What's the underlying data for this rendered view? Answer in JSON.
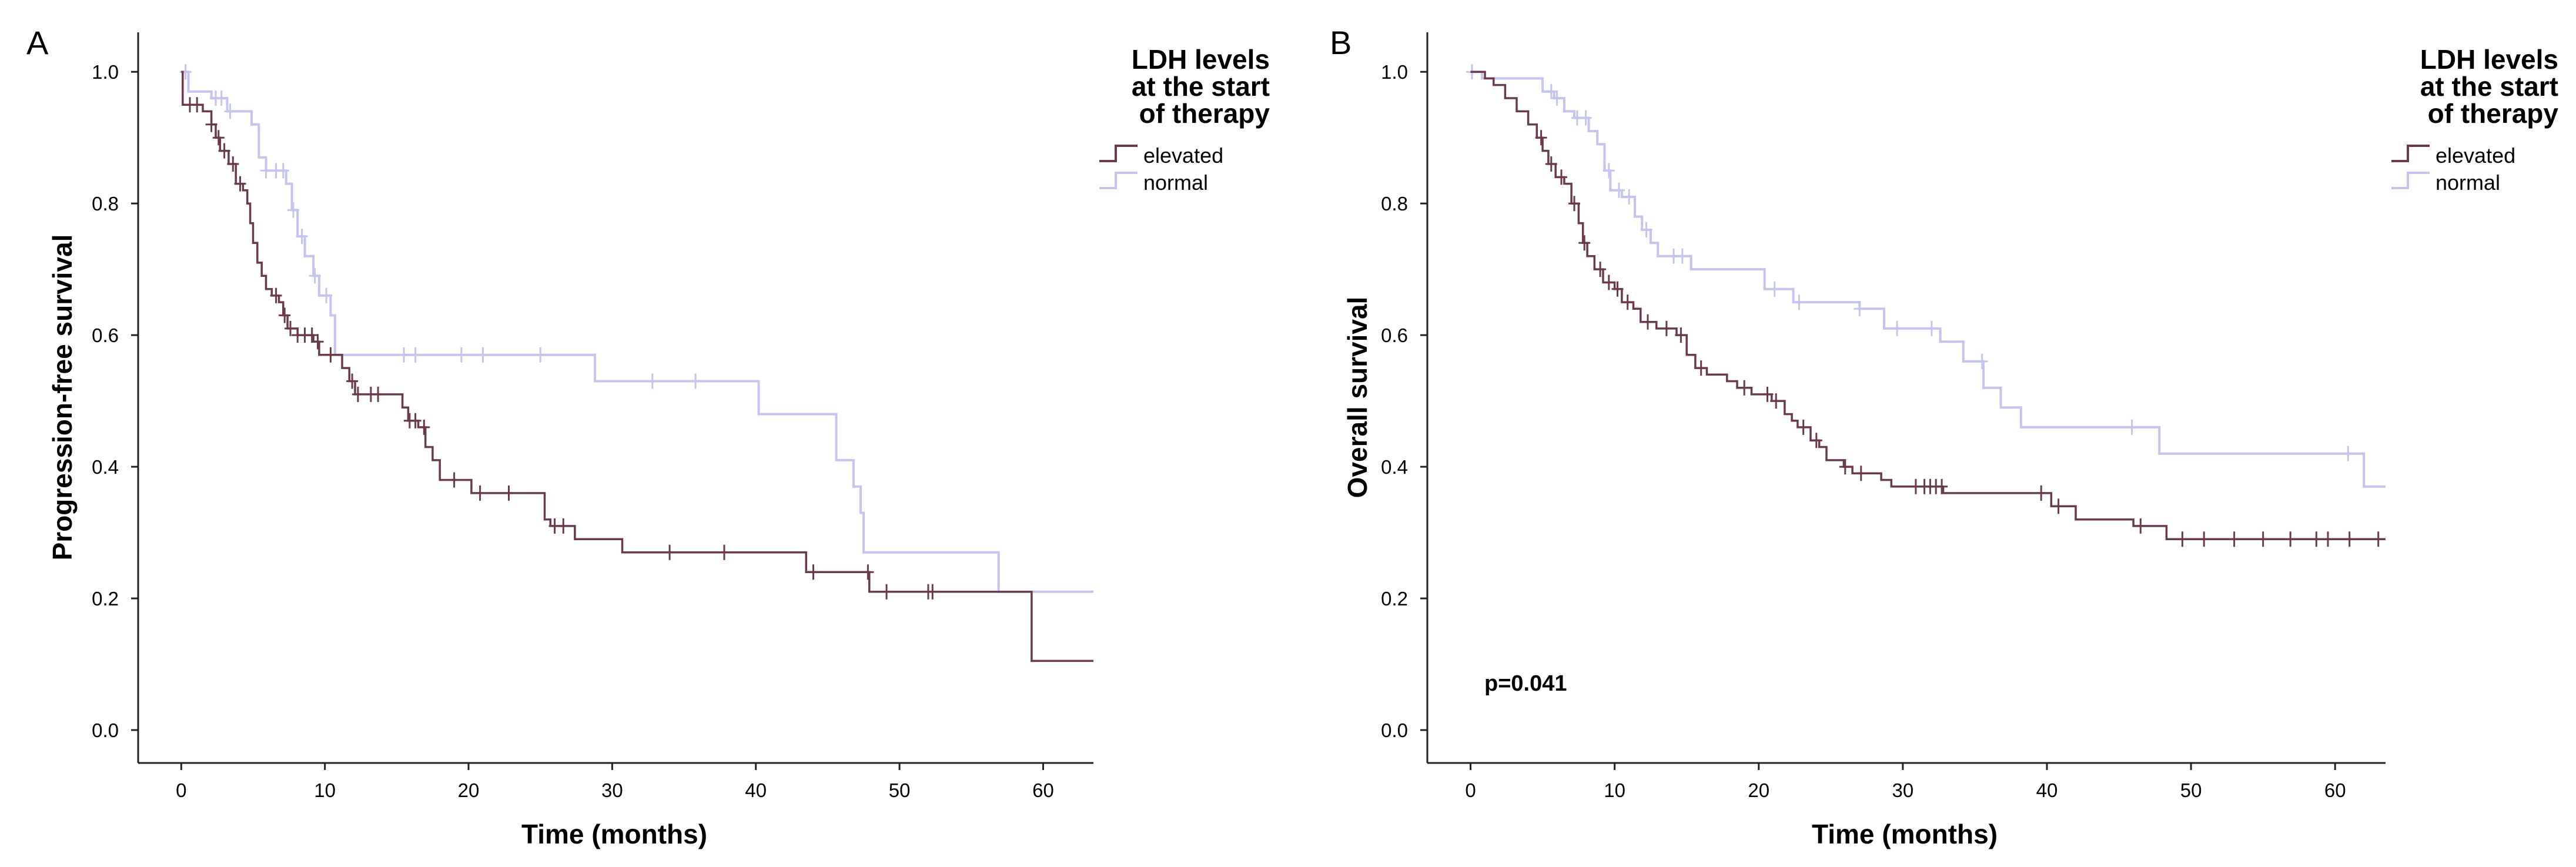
{
  "chart_data": [
    {
      "type": "line",
      "panel_label": "A",
      "xlabel": "Time (months)",
      "ylabel": "Progression-free survival",
      "xlim": [
        -3,
        63.5
      ],
      "ylim": [
        -0.05,
        1.06
      ],
      "x_ticks": [
        "0",
        "10",
        "20",
        "30",
        "40",
        "50",
        "60"
      ],
      "y_ticks": [
        "0.0",
        "0.2",
        "0.4",
        "0.6",
        "0.8",
        "1.0"
      ],
      "legend": {
        "title_lines": [
          "LDH levels",
          "at the start",
          "of therapy"
        ],
        "position": "top-right",
        "entries": [
          "elevated",
          "normal"
        ]
      },
      "annotation": "",
      "series": [
        {
          "name": "elevated",
          "color": "#6b3a4d",
          "step": [
            [
              0,
              1.0
            ],
            [
              0.1,
              0.95
            ],
            [
              1.5,
              0.94
            ],
            [
              2.1,
              0.92
            ],
            [
              2.4,
              0.9
            ],
            [
              2.7,
              0.88
            ],
            [
              3.3,
              0.86
            ],
            [
              3.8,
              0.83
            ],
            [
              4.3,
              0.82
            ],
            [
              4.6,
              0.8
            ],
            [
              4.8,
              0.77
            ],
            [
              5.0,
              0.74
            ],
            [
              5.3,
              0.71
            ],
            [
              5.6,
              0.69
            ],
            [
              5.9,
              0.67
            ],
            [
              6.3,
              0.66
            ],
            [
              6.8,
              0.65
            ],
            [
              7.1,
              0.63
            ],
            [
              7.4,
              0.61
            ],
            [
              8.1,
              0.6
            ],
            [
              9.2,
              0.59
            ],
            [
              9.6,
              0.57
            ],
            [
              10.4,
              0.57
            ],
            [
              11.2,
              0.55
            ],
            [
              11.7,
              0.53
            ],
            [
              12.1,
              0.51
            ],
            [
              15.4,
              0.49
            ],
            [
              15.8,
              0.47
            ],
            [
              16.5,
              0.46
            ],
            [
              17.0,
              0.43
            ],
            [
              17.5,
              0.41
            ],
            [
              18.0,
              0.38
            ],
            [
              19.3,
              0.38
            ],
            [
              20.2,
              0.36
            ],
            [
              25.3,
              0.32
            ],
            [
              25.7,
              0.31
            ],
            [
              27.4,
              0.29
            ],
            [
              28.6,
              0.29
            ],
            [
              30.7,
              0.27
            ],
            [
              43.5,
              0.24
            ],
            [
              47.9,
              0.21
            ],
            [
              59.2,
              0.105
            ],
            [
              63.5,
              0.105
            ]
          ],
          "censor_x": [
            0.6,
            1.1,
            2.1,
            2.6,
            3.0,
            3.6,
            4.1,
            6.6,
            7.2,
            7.6,
            8.1,
            8.6,
            9.1,
            9.5,
            10.4,
            11.9,
            12.3,
            13.2,
            13.7,
            15.9,
            16.3,
            16.9,
            19.0,
            20.8,
            22.8,
            26.0,
            26.6,
            34.0,
            37.8,
            44.0,
            47.8,
            49.1,
            52.0,
            52.3
          ]
        },
        {
          "name": "normal",
          "color": "#c4c4ee",
          "step": [
            [
              0,
              1.0
            ],
            [
              0.2,
              1.0
            ],
            [
              0.5,
              0.97
            ],
            [
              2.1,
              0.96
            ],
            [
              3.2,
              0.94
            ],
            [
              4.9,
              0.92
            ],
            [
              5.4,
              0.87
            ],
            [
              5.9,
              0.85
            ],
            [
              7.3,
              0.83
            ],
            [
              7.7,
              0.79
            ],
            [
              8.1,
              0.75
            ],
            [
              8.6,
              0.72
            ],
            [
              9.2,
              0.69
            ],
            [
              9.6,
              0.66
            ],
            [
              10.4,
              0.63
            ],
            [
              10.7,
              0.57
            ],
            [
              28.8,
              0.53
            ],
            [
              40.2,
              0.48
            ],
            [
              45.6,
              0.41
            ],
            [
              46.8,
              0.37
            ],
            [
              47.3,
              0.33
            ],
            [
              47.5,
              0.27
            ],
            [
              56.9,
              0.21
            ],
            [
              63.5,
              0.21
            ]
          ],
          "censor_x": [
            0.3,
            2.4,
            2.8,
            3.4,
            5.9,
            6.6,
            7.1,
            7.8,
            8.4,
            9.3,
            10.1,
            15.5,
            16.3,
            19.5,
            21.0,
            25.0,
            32.8,
            35.8
          ]
        }
      ]
    },
    {
      "type": "line",
      "panel_label": "B",
      "xlabel": "Time (months)",
      "ylabel": "Overall survival",
      "xlim": [
        -3,
        63.5
      ],
      "ylim": [
        -0.05,
        1.06
      ],
      "x_ticks": [
        "0",
        "10",
        "20",
        "30",
        "40",
        "50",
        "60"
      ],
      "y_ticks": [
        "0.0",
        "0.2",
        "0.4",
        "0.6",
        "0.8",
        "1.0"
      ],
      "legend": {
        "title_lines": [
          "LDH levels",
          "at the start",
          "of therapy"
        ],
        "position": "top-right",
        "entries": [
          "elevated",
          "normal"
        ]
      },
      "annotation": "p=0.041",
      "series": [
        {
          "name": "elevated",
          "color": "#6b3a4d",
          "step": [
            [
              0,
              1.0
            ],
            [
              1.0,
              0.99
            ],
            [
              1.6,
              0.98
            ],
            [
              2.4,
              0.96
            ],
            [
              3.2,
              0.94
            ],
            [
              4.0,
              0.92
            ],
            [
              4.6,
              0.9
            ],
            [
              5.0,
              0.88
            ],
            [
              5.4,
              0.86
            ],
            [
              5.9,
              0.84
            ],
            [
              6.5,
              0.83
            ],
            [
              7.0,
              0.8
            ],
            [
              7.5,
              0.77
            ],
            [
              7.8,
              0.74
            ],
            [
              8.1,
              0.72
            ],
            [
              8.6,
              0.7
            ],
            [
              9.2,
              0.68
            ],
            [
              10.0,
              0.67
            ],
            [
              10.5,
              0.65
            ],
            [
              11.3,
              0.64
            ],
            [
              11.8,
              0.62
            ],
            [
              12.9,
              0.61
            ],
            [
              14.3,
              0.6
            ],
            [
              15.0,
              0.57
            ],
            [
              15.6,
              0.55
            ],
            [
              16.4,
              0.54
            ],
            [
              17.8,
              0.53
            ],
            [
              18.5,
              0.52
            ],
            [
              19.5,
              0.51
            ],
            [
              20.9,
              0.5
            ],
            [
              21.8,
              0.48
            ],
            [
              22.3,
              0.47
            ],
            [
              22.7,
              0.46
            ],
            [
              23.6,
              0.44
            ],
            [
              24.2,
              0.43
            ],
            [
              24.7,
              0.41
            ],
            [
              25.9,
              0.4
            ],
            [
              26.5,
              0.39
            ],
            [
              28.5,
              0.38
            ],
            [
              29.2,
              0.37
            ],
            [
              32.8,
              0.36
            ],
            [
              40.3,
              0.34
            ],
            [
              42.0,
              0.32
            ],
            [
              46.0,
              0.31
            ],
            [
              48.3,
              0.29
            ],
            [
              63.5,
              0.29
            ]
          ],
          "censor_x": [
            4.9,
            5.6,
            6.3,
            7.2,
            7.9,
            9.0,
            9.6,
            10.2,
            10.9,
            12.3,
            13.6,
            14.6,
            16.0,
            19.0,
            20.6,
            21.2,
            23.1,
            24.0,
            26.0,
            27.1,
            30.9,
            31.5,
            31.9,
            32.3,
            32.7,
            39.6,
            40.8,
            46.5,
            49.4,
            50.9,
            53.0,
            55.0,
            56.9,
            58.7,
            59.5,
            61.0,
            63.0
          ]
        },
        {
          "name": "normal",
          "color": "#c4c4ee",
          "step": [
            [
              0,
              1.0
            ],
            [
              0.4,
              1.0
            ],
            [
              0.8,
              0.99
            ],
            [
              2.0,
              0.99
            ],
            [
              5.0,
              0.97
            ],
            [
              5.8,
              0.96
            ],
            [
              6.5,
              0.94
            ],
            [
              7.2,
              0.93
            ],
            [
              8.2,
              0.91
            ],
            [
              8.8,
              0.89
            ],
            [
              9.3,
              0.85
            ],
            [
              9.7,
              0.82
            ],
            [
              10.5,
              0.81
            ],
            [
              11.4,
              0.78
            ],
            [
              11.9,
              0.76
            ],
            [
              12.5,
              0.74
            ],
            [
              13.0,
              0.72
            ],
            [
              15.3,
              0.7
            ],
            [
              20.4,
              0.67
            ],
            [
              22.4,
              0.65
            ],
            [
              27.0,
              0.64
            ],
            [
              28.7,
              0.61
            ],
            [
              32.6,
              0.59
            ],
            [
              34.2,
              0.56
            ],
            [
              35.6,
              0.52
            ],
            [
              36.8,
              0.49
            ],
            [
              38.2,
              0.46
            ],
            [
              47.8,
              0.42
            ],
            [
              62.0,
              0.37
            ],
            [
              63.5,
              0.37
            ]
          ],
          "censor_x": [
            0.1,
            5.6,
            6.0,
            7.4,
            8.0,
            9.6,
            10.3,
            11.0,
            12.2,
            14.1,
            14.7,
            21.1,
            22.8,
            27.0,
            29.6,
            32.0,
            35.5,
            45.9,
            60.9
          ]
        }
      ]
    }
  ]
}
